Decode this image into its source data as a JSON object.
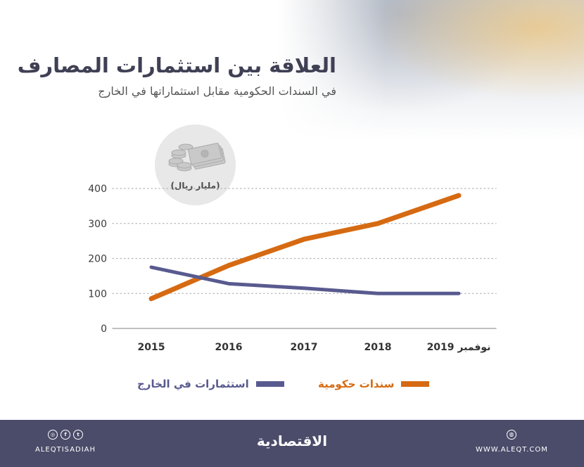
{
  "header": {
    "title": "العلاقة بين استثمارات المصارف",
    "subtitle": "في السندات الحكومية مقابل استثماراتها في الخارج"
  },
  "unit_badge": {
    "label": "(مليار ريال)",
    "icon": "money-icon"
  },
  "chart_data": {
    "type": "line",
    "categories": [
      "2015",
      "2016",
      "2017",
      "2018",
      "نوفمبر 2019"
    ],
    "series": [
      {
        "name": "سندات حكومية",
        "color": "#d66a12",
        "values": [
          85,
          180,
          255,
          300,
          380
        ]
      },
      {
        "name": "استثمارات في الخارج",
        "color": "#585a8f",
        "values": [
          175,
          128,
          115,
          100,
          100
        ]
      }
    ],
    "ylim": [
      0,
      400
    ],
    "yticks": [
      0,
      100,
      200,
      300,
      400
    ],
    "grid": true,
    "legend": "bottom"
  },
  "legend": {
    "items": [
      {
        "label": "سندات حكومية",
        "color": "#d66a12"
      },
      {
        "label": "استثمارات في الخارج",
        "color": "#585a8f"
      }
    ]
  },
  "footer": {
    "brand": "الاقتصادية",
    "handle": "ALEQTISADIAH",
    "site": "WWW.ALEQT.COM",
    "social_icons": [
      "instagram-icon",
      "facebook-icon",
      "twitter-icon"
    ],
    "site_icon": "globe-icon",
    "background_color": "#4b4c6a"
  }
}
